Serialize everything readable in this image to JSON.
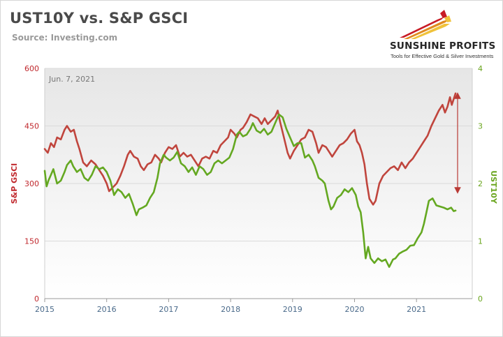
{
  "header": {
    "title": "UST10Y vs. S&P GSCI",
    "source": "Source: Investing.com",
    "brand": "SUNSHINE PROFITS",
    "tagline": "Tools for Effective Gold & Silver Investments"
  },
  "chart_data": {
    "type": "line",
    "annotation": "Jun. 7, 2021",
    "ylabel_left": "S&P GSCI",
    "ylabel_right": "UST10Y",
    "left_axis": {
      "range": [
        0,
        600
      ],
      "ticks": [
        0,
        150,
        300,
        450,
        600
      ],
      "color": "#c0282d"
    },
    "right_axis": {
      "range": [
        0,
        4
      ],
      "ticks": [
        0,
        1,
        2,
        3,
        4
      ],
      "color": "#6aa51e"
    },
    "x_axis": {
      "range": [
        2015,
        2021.9
      ],
      "ticks": [
        "2015",
        "2016",
        "2017",
        "2018",
        "2019",
        "2020",
        "2021"
      ]
    },
    "grid": "horizontal",
    "series": [
      {
        "axis": "left",
        "color": "#c0453d",
        "points": [
          [
            2015.0,
            390
          ],
          [
            2015.05,
            380
          ],
          [
            2015.1,
            405
          ],
          [
            2015.15,
            395
          ],
          [
            2015.2,
            420
          ],
          [
            2015.26,
            415
          ],
          [
            2015.32,
            440
          ],
          [
            2015.36,
            450
          ],
          [
            2015.42,
            435
          ],
          [
            2015.47,
            440
          ],
          [
            2015.52,
            410
          ],
          [
            2015.56,
            390
          ],
          [
            2015.62,
            355
          ],
          [
            2015.68,
            345
          ],
          [
            2015.75,
            360
          ],
          [
            2015.82,
            350
          ],
          [
            2015.88,
            335
          ],
          [
            2015.94,
            320
          ],
          [
            2016.0,
            300
          ],
          [
            2016.04,
            280
          ],
          [
            2016.1,
            290
          ],
          [
            2016.16,
            300
          ],
          [
            2016.22,
            320
          ],
          [
            2016.28,
            345
          ],
          [
            2016.34,
            375
          ],
          [
            2016.38,
            385
          ],
          [
            2016.44,
            370
          ],
          [
            2016.5,
            365
          ],
          [
            2016.55,
            345
          ],
          [
            2016.6,
            335
          ],
          [
            2016.66,
            350
          ],
          [
            2016.72,
            355
          ],
          [
            2016.78,
            375
          ],
          [
            2016.84,
            365
          ],
          [
            2016.88,
            355
          ],
          [
            2016.94,
            380
          ],
          [
            2017.0,
            395
          ],
          [
            2017.06,
            390
          ],
          [
            2017.12,
            400
          ],
          [
            2017.18,
            370
          ],
          [
            2017.24,
            380
          ],
          [
            2017.3,
            370
          ],
          [
            2017.36,
            375
          ],
          [
            2017.42,
            360
          ],
          [
            2017.48,
            345
          ],
          [
            2017.54,
            365
          ],
          [
            2017.6,
            370
          ],
          [
            2017.66,
            365
          ],
          [
            2017.72,
            385
          ],
          [
            2017.78,
            380
          ],
          [
            2017.84,
            400
          ],
          [
            2017.9,
            410
          ],
          [
            2017.96,
            420
          ],
          [
            2018.0,
            440
          ],
          [
            2018.06,
            430
          ],
          [
            2018.1,
            420
          ],
          [
            2018.16,
            440
          ],
          [
            2018.2,
            445
          ],
          [
            2018.26,
            460
          ],
          [
            2018.32,
            480
          ],
          [
            2018.38,
            475
          ],
          [
            2018.44,
            470
          ],
          [
            2018.5,
            455
          ],
          [
            2018.55,
            470
          ],
          [
            2018.6,
            455
          ],
          [
            2018.66,
            465
          ],
          [
            2018.72,
            475
          ],
          [
            2018.76,
            490
          ],
          [
            2018.8,
            460
          ],
          [
            2018.86,
            420
          ],
          [
            2018.92,
            380
          ],
          [
            2018.96,
            365
          ],
          [
            2019.02,
            385
          ],
          [
            2019.08,
            400
          ],
          [
            2019.14,
            415
          ],
          [
            2019.2,
            420
          ],
          [
            2019.26,
            440
          ],
          [
            2019.32,
            435
          ],
          [
            2019.38,
            405
          ],
          [
            2019.42,
            380
          ],
          [
            2019.48,
            400
          ],
          [
            2019.54,
            395
          ],
          [
            2019.58,
            385
          ],
          [
            2019.64,
            370
          ],
          [
            2019.7,
            385
          ],
          [
            2019.76,
            400
          ],
          [
            2019.82,
            405
          ],
          [
            2019.88,
            415
          ],
          [
            2019.94,
            430
          ],
          [
            2020.0,
            440
          ],
          [
            2020.04,
            410
          ],
          [
            2020.08,
            400
          ],
          [
            2020.12,
            380
          ],
          [
            2020.16,
            350
          ],
          [
            2020.2,
            300
          ],
          [
            2020.24,
            260
          ],
          [
            2020.3,
            245
          ],
          [
            2020.34,
            255
          ],
          [
            2020.4,
            300
          ],
          [
            2020.46,
            320
          ],
          [
            2020.52,
            330
          ],
          [
            2020.58,
            340
          ],
          [
            2020.64,
            345
          ],
          [
            2020.7,
            335
          ],
          [
            2020.76,
            355
          ],
          [
            2020.82,
            340
          ],
          [
            2020.88,
            355
          ],
          [
            2020.94,
            365
          ],
          [
            2021.0,
            380
          ],
          [
            2021.06,
            395
          ],
          [
            2021.12,
            410
          ],
          [
            2021.18,
            425
          ],
          [
            2021.24,
            450
          ],
          [
            2021.3,
            470
          ],
          [
            2021.36,
            490
          ],
          [
            2021.42,
            505
          ],
          [
            2021.46,
            485
          ],
          [
            2021.5,
            500
          ],
          [
            2021.54,
            525
          ],
          [
            2021.57,
            505
          ],
          [
            2021.6,
            520
          ],
          [
            2021.63,
            535
          ]
        ]
      },
      {
        "axis": "right",
        "color": "#64a821",
        "points": [
          [
            2015.0,
            2.22
          ],
          [
            2015.03,
            1.95
          ],
          [
            2015.06,
            2.05
          ],
          [
            2015.1,
            2.15
          ],
          [
            2015.14,
            2.25
          ],
          [
            2015.2,
            2.0
          ],
          [
            2015.26,
            2.05
          ],
          [
            2015.32,
            2.2
          ],
          [
            2015.36,
            2.32
          ],
          [
            2015.42,
            2.4
          ],
          [
            2015.46,
            2.3
          ],
          [
            2015.52,
            2.2
          ],
          [
            2015.58,
            2.25
          ],
          [
            2015.64,
            2.1
          ],
          [
            2015.7,
            2.05
          ],
          [
            2015.76,
            2.15
          ],
          [
            2015.82,
            2.3
          ],
          [
            2015.88,
            2.25
          ],
          [
            2015.94,
            2.28
          ],
          [
            2016.0,
            2.2
          ],
          [
            2016.06,
            2.05
          ],
          [
            2016.12,
            1.8
          ],
          [
            2016.18,
            1.9
          ],
          [
            2016.24,
            1.85
          ],
          [
            2016.3,
            1.75
          ],
          [
            2016.36,
            1.82
          ],
          [
            2016.42,
            1.65
          ],
          [
            2016.48,
            1.45
          ],
          [
            2016.52,
            1.55
          ],
          [
            2016.58,
            1.58
          ],
          [
            2016.64,
            1.62
          ],
          [
            2016.7,
            1.75
          ],
          [
            2016.76,
            1.85
          ],
          [
            2016.82,
            2.1
          ],
          [
            2016.86,
            2.35
          ],
          [
            2016.92,
            2.5
          ],
          [
            2016.96,
            2.45
          ],
          [
            2017.02,
            2.4
          ],
          [
            2017.08,
            2.45
          ],
          [
            2017.14,
            2.55
          ],
          [
            2017.2,
            2.35
          ],
          [
            2017.26,
            2.3
          ],
          [
            2017.32,
            2.2
          ],
          [
            2017.38,
            2.28
          ],
          [
            2017.44,
            2.15
          ],
          [
            2017.5,
            2.3
          ],
          [
            2017.56,
            2.25
          ],
          [
            2017.62,
            2.15
          ],
          [
            2017.68,
            2.2
          ],
          [
            2017.74,
            2.35
          ],
          [
            2017.8,
            2.4
          ],
          [
            2017.86,
            2.35
          ],
          [
            2017.92,
            2.4
          ],
          [
            2017.98,
            2.45
          ],
          [
            2018.04,
            2.6
          ],
          [
            2018.1,
            2.85
          ],
          [
            2018.14,
            2.9
          ],
          [
            2018.2,
            2.82
          ],
          [
            2018.26,
            2.85
          ],
          [
            2018.32,
            2.95
          ],
          [
            2018.36,
            3.05
          ],
          [
            2018.42,
            2.92
          ],
          [
            2018.48,
            2.88
          ],
          [
            2018.54,
            2.95
          ],
          [
            2018.6,
            2.85
          ],
          [
            2018.66,
            2.9
          ],
          [
            2018.72,
            3.05
          ],
          [
            2018.78,
            3.2
          ],
          [
            2018.84,
            3.15
          ],
          [
            2018.9,
            2.95
          ],
          [
            2018.96,
            2.8
          ],
          [
            2019.02,
            2.65
          ],
          [
            2019.08,
            2.7
          ],
          [
            2019.14,
            2.7
          ],
          [
            2019.2,
            2.45
          ],
          [
            2019.26,
            2.5
          ],
          [
            2019.32,
            2.4
          ],
          [
            2019.36,
            2.3
          ],
          [
            2019.42,
            2.1
          ],
          [
            2019.48,
            2.05
          ],
          [
            2019.52,
            2.0
          ],
          [
            2019.58,
            1.7
          ],
          [
            2019.62,
            1.55
          ],
          [
            2019.66,
            1.6
          ],
          [
            2019.72,
            1.75
          ],
          [
            2019.78,
            1.8
          ],
          [
            2019.84,
            1.9
          ],
          [
            2019.9,
            1.85
          ],
          [
            2019.96,
            1.92
          ],
          [
            2020.02,
            1.8
          ],
          [
            2020.06,
            1.6
          ],
          [
            2020.1,
            1.5
          ],
          [
            2020.14,
            1.15
          ],
          [
            2020.18,
            0.7
          ],
          [
            2020.22,
            0.9
          ],
          [
            2020.26,
            0.7
          ],
          [
            2020.32,
            0.62
          ],
          [
            2020.38,
            0.7
          ],
          [
            2020.44,
            0.65
          ],
          [
            2020.5,
            0.68
          ],
          [
            2020.56,
            0.55
          ],
          [
            2020.62,
            0.68
          ],
          [
            2020.66,
            0.7
          ],
          [
            2020.72,
            0.78
          ],
          [
            2020.78,
            0.82
          ],
          [
            2020.84,
            0.85
          ],
          [
            2020.9,
            0.92
          ],
          [
            2020.96,
            0.93
          ],
          [
            2021.02,
            1.05
          ],
          [
            2021.08,
            1.15
          ],
          [
            2021.12,
            1.3
          ],
          [
            2021.16,
            1.5
          ],
          [
            2021.2,
            1.7
          ],
          [
            2021.26,
            1.74
          ],
          [
            2021.32,
            1.62
          ],
          [
            2021.38,
            1.6
          ],
          [
            2021.44,
            1.58
          ],
          [
            2021.5,
            1.55
          ],
          [
            2021.56,
            1.58
          ],
          [
            2021.6,
            1.52
          ],
          [
            2021.63,
            1.53
          ]
        ]
      }
    ]
  },
  "colors": {
    "plot_bg_top": "#e9e9e9",
    "plot_bg_bottom": "#ffffff",
    "grid": "#dcdcdc",
    "arrow": "#b93a35"
  }
}
